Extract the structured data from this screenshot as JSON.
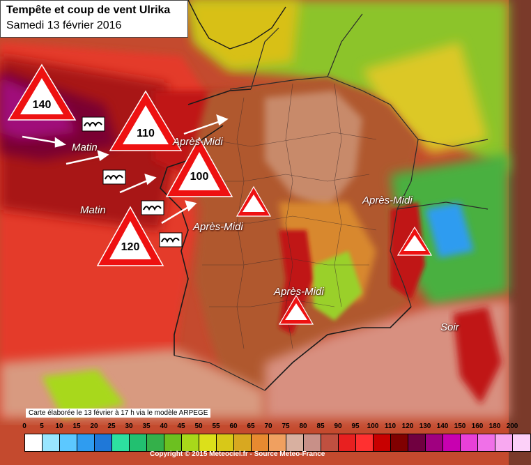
{
  "title": "Tempête et coup de vent Ulrika",
  "subtitle": "Samedi 13 février 2016",
  "credit": "Carte élaborée le 13 février à 17 h via le modèle ARPEGE",
  "copyright": "Copyright © 2015 Meteociel.fr - Source Meteo-France",
  "warnings": [
    {
      "name": "warning-140",
      "value": "140"
    },
    {
      "name": "warning-110",
      "value": "110"
    },
    {
      "name": "warning-100",
      "value": "100"
    },
    {
      "name": "warning-120",
      "value": "120"
    },
    {
      "name": "warning-centre",
      "value": ""
    },
    {
      "name": "warning-alpes",
      "value": ""
    },
    {
      "name": "warning-cevennes",
      "value": ""
    }
  ],
  "periods": [
    {
      "name": "label-matin-1",
      "text": "Matin"
    },
    {
      "name": "label-matin-2",
      "text": "Matin"
    },
    {
      "name": "label-apres-midi-1",
      "text": "Après-Midi"
    },
    {
      "name": "label-apres-midi-2",
      "text": "Après-Midi"
    },
    {
      "name": "label-apres-midi-3",
      "text": "Après-Midi"
    },
    {
      "name": "label-apres-midi-4",
      "text": "Après-Midi"
    },
    {
      "name": "label-soir",
      "text": "Soir"
    }
  ],
  "legend": {
    "labels": [
      "0",
      "5",
      "10",
      "15",
      "20",
      "25",
      "30",
      "35",
      "40",
      "45",
      "50",
      "55",
      "60",
      "65",
      "70",
      "75",
      "80",
      "85",
      "90",
      "95",
      "100",
      "110",
      "120",
      "130",
      "140",
      "150",
      "160",
      "180",
      "200"
    ],
    "colors": [
      "#ffffff",
      "#99e6ff",
      "#5cc8ff",
      "#2f9cf0",
      "#1f78d8",
      "#2de0a0",
      "#22c070",
      "#34b04a",
      "#6cc020",
      "#a8d81a",
      "#dce01a",
      "#d8c818",
      "#d8a820",
      "#e88a30",
      "#f0a060",
      "#d8b0a0",
      "#c89088",
      "#c05040",
      "#e82020",
      "#ff3030",
      "#c80000",
      "#800000",
      "#700040",
      "#a00080",
      "#c800b0",
      "#e840d8",
      "#f070e8",
      "#f8a8f0",
      "#fcd0f8"
    ]
  },
  "colors": {
    "sea_low": "#e43a2a",
    "sea_mid": "#a81818",
    "sea_core": "#7a0030",
    "land_mid": "#b0582e",
    "land_mix": "#c88a6a"
  }
}
